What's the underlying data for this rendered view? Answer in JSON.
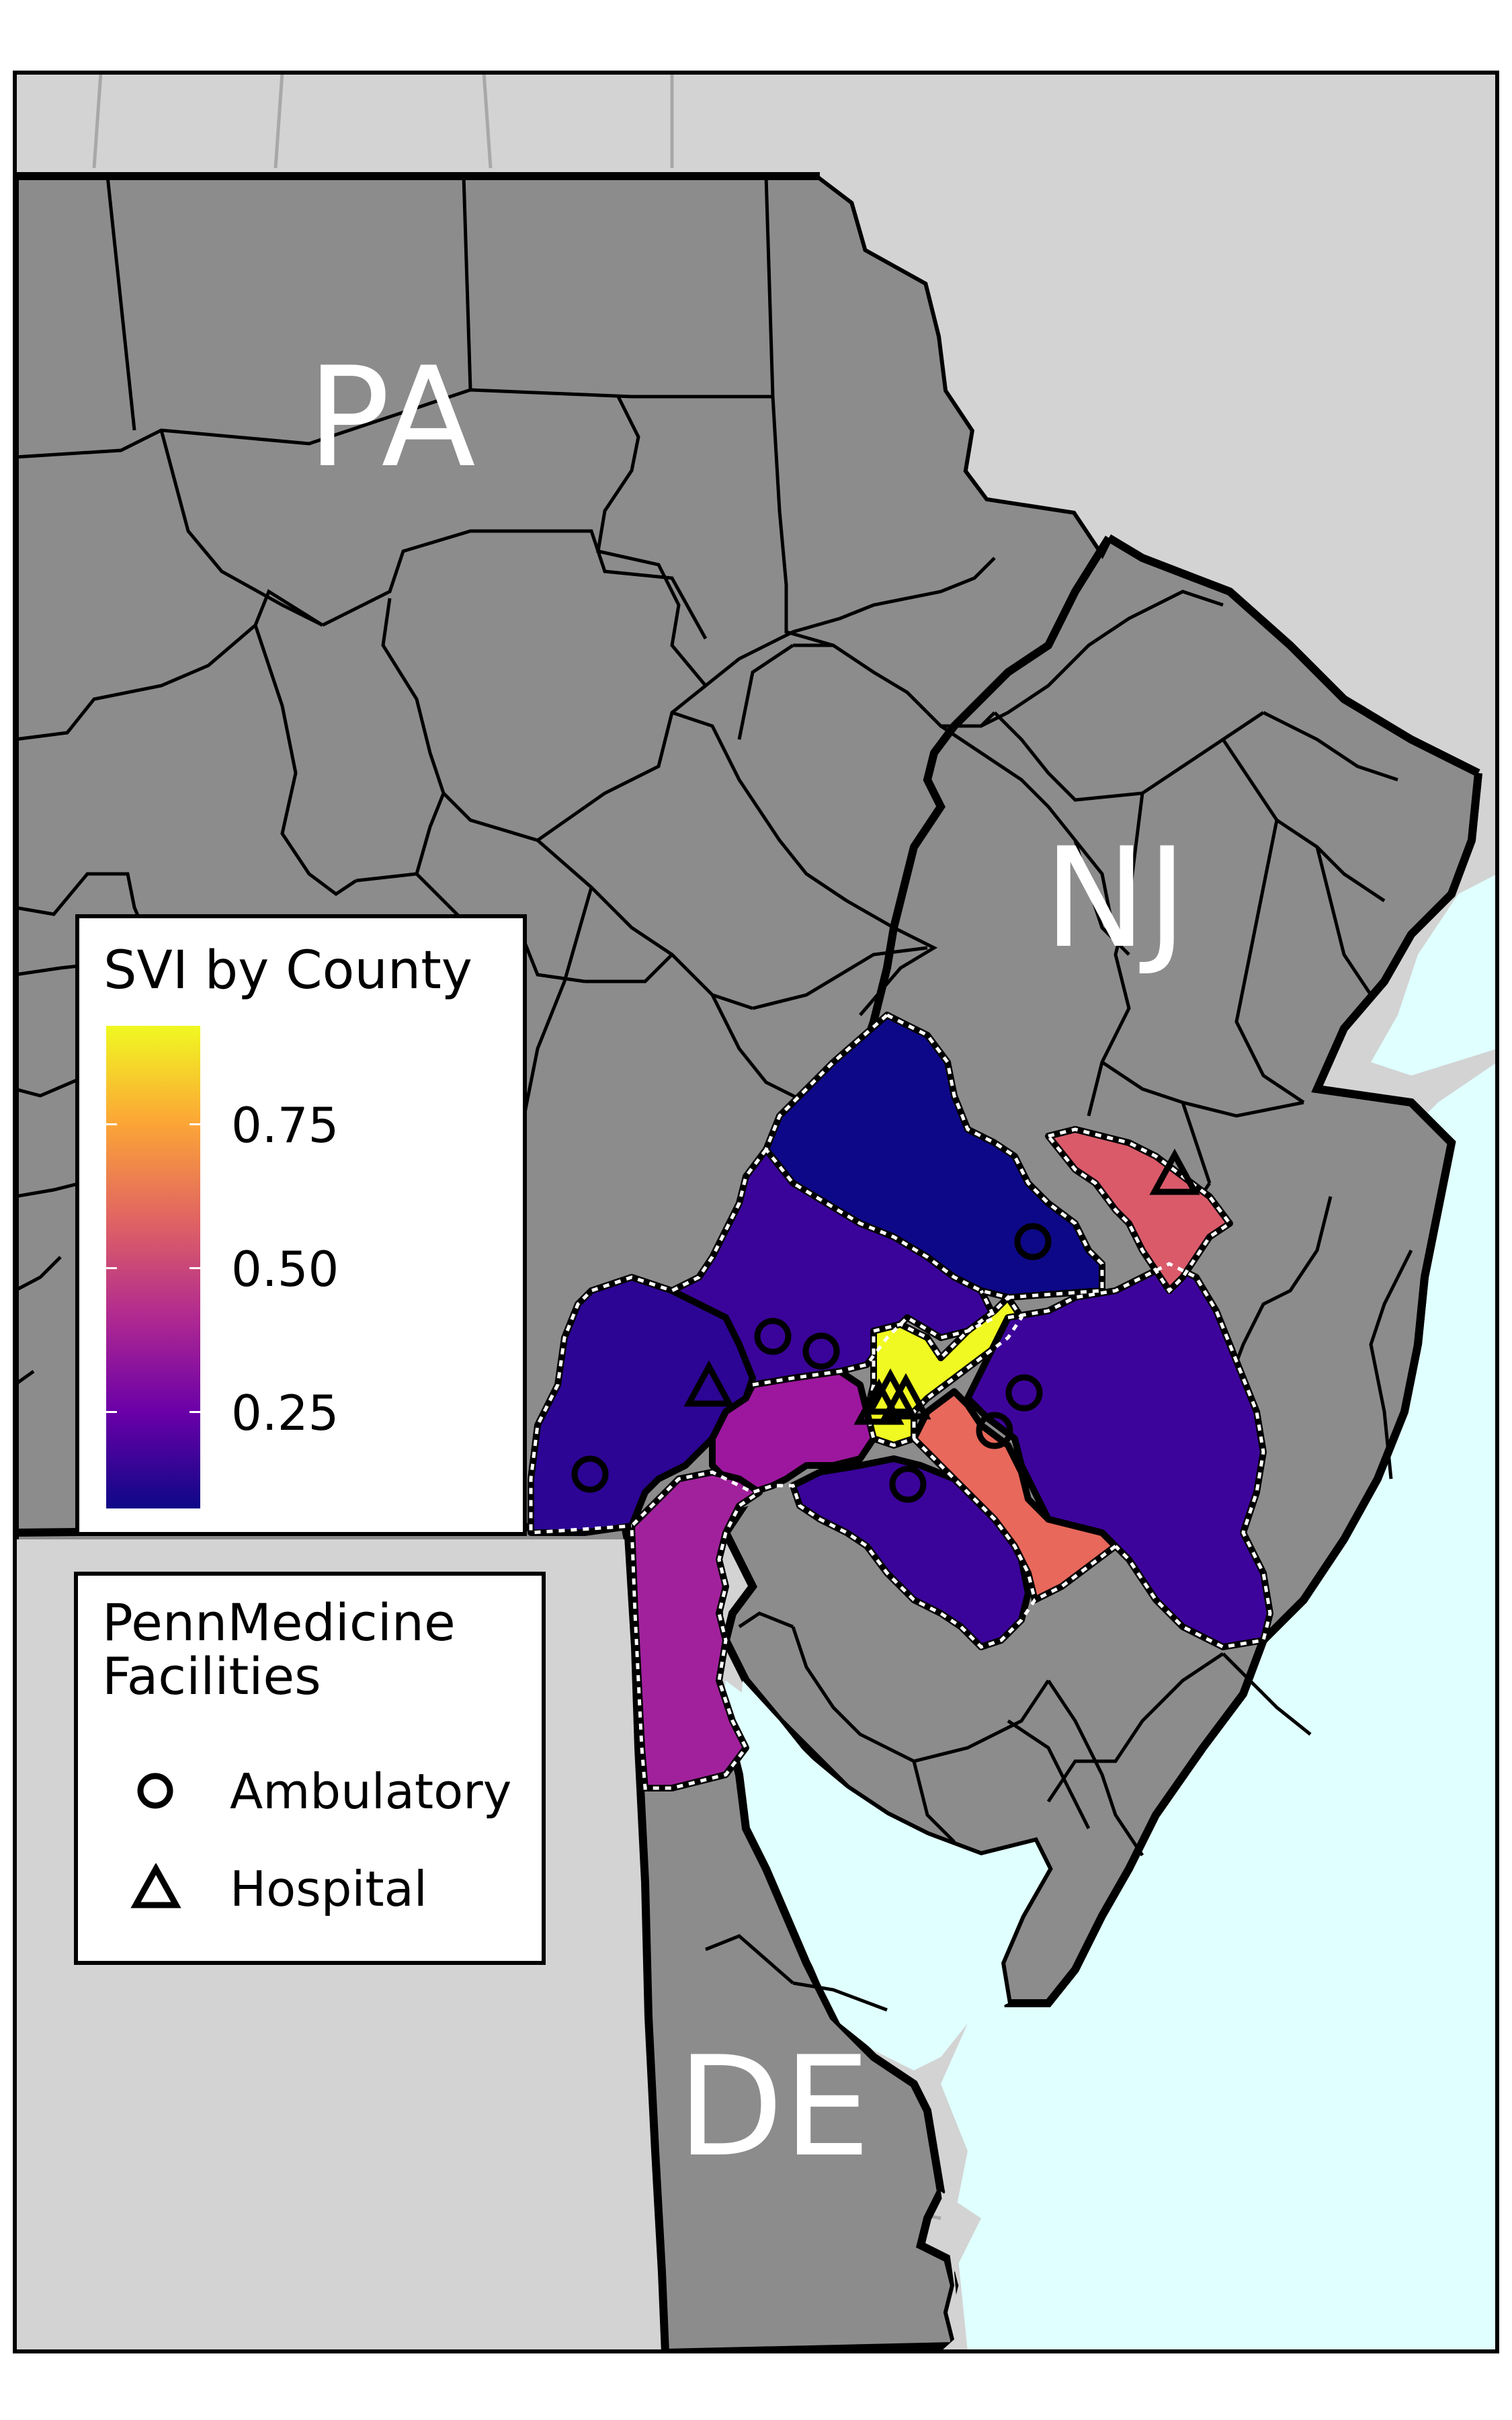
{
  "states": [
    "PA",
    "NJ",
    "DE"
  ],
  "svi_legend": {
    "title": "SVI by County",
    "ticks": [
      "0.75",
      "0.50",
      "0.25"
    ],
    "colormap": "plasma",
    "colors": [
      "#0d0887",
      "#6a00a8",
      "#b12a90",
      "#e16462",
      "#fca636",
      "#f0f921"
    ]
  },
  "facility_legend": {
    "title_line1": "PennMedicine",
    "title_line2": "Facilities",
    "items": [
      {
        "label": "Ambulatory",
        "symbol": "circle"
      },
      {
        "label": "Hospital",
        "symbol": "triangle"
      }
    ]
  },
  "colors": {
    "county_fill": "#8c8c8c",
    "background_land": "#d3d3d3",
    "water": "#e0ffff",
    "state_border": "#000000",
    "highlight_border": "#ffffff"
  },
  "highlighted_counties_svi": [
    0.03,
    0.12,
    0.09,
    0.35,
    0.12,
    0.97,
    0.62,
    0.13,
    0.38,
    0.57
  ]
}
